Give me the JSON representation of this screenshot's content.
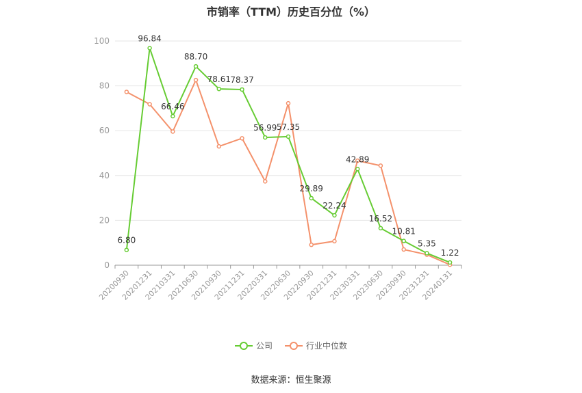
{
  "chart_data": {
    "type": "line",
    "title": "市销率（TTM）历史百分位（%）",
    "categories": [
      "20200930",
      "20201231",
      "20210331",
      "20210630",
      "20210930",
      "20211231",
      "20220331",
      "20220630",
      "20220930",
      "20221231",
      "20230331",
      "20230630",
      "20230930",
      "20231231",
      "20240131"
    ],
    "ylim": [
      0,
      100
    ],
    "yticks": [
      0,
      20,
      40,
      60,
      80,
      100
    ],
    "grid": true,
    "legend_position": "bottom-center",
    "series": [
      {
        "name": "公司",
        "color": "#66CC33",
        "show_labels": true,
        "values": [
          6.8,
          96.84,
          66.46,
          88.7,
          78.61,
          78.37,
          56.99,
          57.35,
          29.89,
          22.24,
          42.89,
          16.52,
          10.81,
          5.35,
          1.22
        ]
      },
      {
        "name": "行业中位数",
        "color": "#F4916B",
        "show_labels": false,
        "values": [
          77.3,
          71.8,
          59.6,
          82.6,
          53.0,
          56.6,
          37.4,
          72.2,
          9.1,
          10.7,
          46.6,
          44.4,
          7.0,
          4.7,
          0.2
        ]
      }
    ],
    "source": "数据来源：恒生聚源"
  }
}
